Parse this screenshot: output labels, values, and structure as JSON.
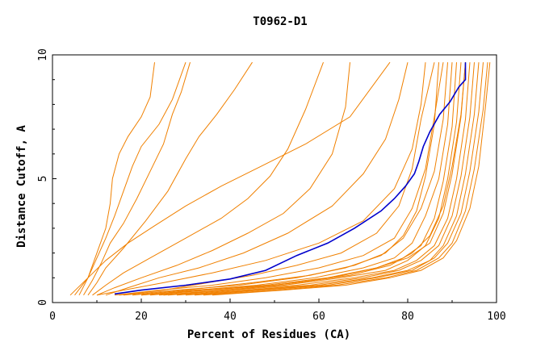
{
  "chart_data": {
    "type": "line",
    "title": "T0962-D1",
    "xlabel": "Percent of Residues (CA)",
    "ylabel": "Distance Cutoff, A",
    "xlim": [
      0,
      100
    ],
    "ylim": [
      0,
      10
    ],
    "x_ticks": [
      "0",
      "20",
      "40",
      "60",
      "80",
      "100"
    ],
    "y_ticks": [
      "0",
      "5",
      "10"
    ],
    "grid": false,
    "legend": "none",
    "colors": {
      "highlight": "#0000cc",
      "others": "#f08000"
    },
    "highlight_series": {
      "x": [
        14,
        20,
        30,
        40,
        48,
        55,
        62,
        68,
        74,
        77,
        79.5,
        81.5,
        82.5,
        83.5,
        85,
        87.2,
        89.5,
        91.5,
        93,
        93
      ],
      "y": [
        0.35,
        0.5,
        0.7,
        0.95,
        1.3,
        1.9,
        2.4,
        3.0,
        3.7,
        4.2,
        4.7,
        5.2,
        5.7,
        6.3,
        6.9,
        7.6,
        8.1,
        8.7,
        9.0,
        9.7
      ]
    },
    "series": [
      {
        "x": [
          5,
          8,
          10,
          12,
          13,
          13.5,
          15,
          17,
          20,
          22,
          23
        ],
        "y": [
          0.3,
          1,
          2,
          3,
          4,
          5,
          6,
          6.7,
          7.5,
          8.3,
          9.7
        ]
      },
      {
        "x": [
          6,
          8,
          10,
          12,
          14,
          16,
          18,
          20,
          24,
          27,
          30
        ],
        "y": [
          0.3,
          1,
          1.8,
          2.6,
          3.5,
          4.5,
          5.5,
          6.3,
          7.2,
          8.2,
          9.7
        ]
      },
      {
        "x": [
          7,
          9,
          11,
          13,
          16,
          19,
          22,
          25,
          27,
          29,
          31
        ],
        "y": [
          0.3,
          0.9,
          1.6,
          2.4,
          3.2,
          4.2,
          5.3,
          6.4,
          7.6,
          8.5,
          9.7
        ]
      },
      {
        "x": [
          8,
          10,
          12,
          16,
          21,
          26,
          30,
          33,
          37,
          41,
          45
        ],
        "y": [
          0.3,
          0.8,
          1.4,
          2.2,
          3.3,
          4.5,
          5.8,
          6.7,
          7.6,
          8.6,
          9.7
        ]
      },
      {
        "x": [
          9,
          12,
          16,
          22,
          30,
          38,
          44,
          49,
          53,
          57,
          61
        ],
        "y": [
          0.3,
          0.7,
          1.2,
          1.8,
          2.6,
          3.4,
          4.2,
          5.1,
          6.2,
          7.8,
          9.7
        ]
      },
      {
        "x": [
          10,
          14,
          20,
          28,
          36,
          44,
          52,
          58,
          63,
          66,
          67
        ],
        "y": [
          0.3,
          0.6,
          1.0,
          1.5,
          2.1,
          2.8,
          3.6,
          4.6,
          6.0,
          7.9,
          9.7
        ]
      },
      {
        "x": [
          4,
          8,
          12,
          17,
          23,
          30,
          38,
          47,
          57,
          67,
          76
        ],
        "y": [
          0.3,
          1.0,
          1.7,
          2.4,
          3.1,
          3.9,
          4.7,
          5.5,
          6.4,
          7.5,
          9.7
        ]
      },
      {
        "x": [
          12,
          17,
          24,
          33,
          43,
          53,
          63,
          70,
          75,
          78,
          80
        ],
        "y": [
          0.3,
          0.6,
          1.0,
          1.4,
          2.0,
          2.8,
          3.9,
          5.2,
          6.6,
          8.2,
          9.7
        ]
      },
      {
        "x": [
          10,
          16,
          25,
          36,
          48,
          60,
          70,
          77,
          81,
          83,
          84
        ],
        "y": [
          0.3,
          0.5,
          0.8,
          1.2,
          1.7,
          2.4,
          3.3,
          4.6,
          6.2,
          8.0,
          9.7
        ]
      },
      {
        "x": [
          15,
          25,
          35,
          45,
          55,
          65,
          73,
          78,
          81,
          83,
          86
        ],
        "y": [
          0.3,
          0.5,
          0.8,
          1.1,
          1.5,
          2.0,
          2.8,
          3.9,
          5.4,
          7.4,
          9.7
        ]
      },
      {
        "x": [
          14,
          24,
          36,
          48,
          60,
          70,
          77,
          81,
          84,
          86,
          88
        ],
        "y": [
          0.3,
          0.5,
          0.7,
          1.0,
          1.4,
          1.9,
          2.6,
          3.8,
          5.4,
          7.5,
          9.7
        ]
      },
      {
        "x": [
          18,
          30,
          45,
          58,
          68,
          75,
          79,
          82,
          84,
          86,
          87
        ],
        "y": [
          0.3,
          0.5,
          0.8,
          1.1,
          1.5,
          2.0,
          2.7,
          3.7,
          5.1,
          7.2,
          9.7
        ]
      },
      {
        "x": [
          16,
          28,
          42,
          55,
          66,
          74,
          79,
          83,
          86,
          88,
          89
        ],
        "y": [
          0.3,
          0.5,
          0.7,
          1.0,
          1.4,
          1.9,
          2.6,
          3.8,
          5.3,
          7.4,
          9.7
        ]
      },
      {
        "x": [
          20,
          32,
          46,
          59,
          70,
          77,
          81,
          84,
          87,
          89,
          90
        ],
        "y": [
          0.3,
          0.5,
          0.7,
          1.0,
          1.4,
          1.8,
          2.4,
          3.5,
          5.0,
          7.2,
          9.7
        ]
      },
      {
        "x": [
          22,
          35,
          50,
          63,
          73,
          79,
          83,
          86,
          88,
          90,
          91
        ],
        "y": [
          0.3,
          0.5,
          0.7,
          1.0,
          1.4,
          1.8,
          2.3,
          3.4,
          4.9,
          7.1,
          9.7
        ]
      },
      {
        "x": [
          24,
          38,
          52,
          65,
          75,
          80,
          84,
          87,
          89,
          91,
          92
        ],
        "y": [
          0.3,
          0.5,
          0.7,
          1.0,
          1.3,
          1.7,
          2.3,
          3.4,
          5.0,
          7.3,
          9.7
        ]
      },
      {
        "x": [
          20,
          34,
          48,
          62,
          73,
          80,
          85,
          88,
          90,
          92,
          93
        ],
        "y": [
          0.3,
          0.5,
          0.7,
          1.0,
          1.4,
          1.8,
          2.4,
          3.6,
          5.2,
          7.5,
          9.7
        ]
      },
      {
        "x": [
          26,
          40,
          55,
          68,
          77,
          82,
          86,
          89,
          91,
          93,
          94
        ],
        "y": [
          0.3,
          0.5,
          0.7,
          1.0,
          1.3,
          1.7,
          2.3,
          3.4,
          5.0,
          7.4,
          9.7
        ]
      },
      {
        "x": [
          28,
          43,
          58,
          70,
          78,
          83,
          87,
          90,
          92,
          94,
          95
        ],
        "y": [
          0.3,
          0.5,
          0.7,
          1.0,
          1.3,
          1.7,
          2.3,
          3.5,
          5.1,
          7.5,
          9.7
        ]
      },
      {
        "x": [
          30,
          45,
          60,
          72,
          80,
          85,
          88,
          91,
          93,
          95,
          96
        ],
        "y": [
          0.3,
          0.5,
          0.7,
          1.0,
          1.3,
          1.7,
          2.3,
          3.5,
          5.2,
          7.6,
          9.7
        ]
      },
      {
        "x": [
          32,
          47,
          62,
          73,
          81,
          86,
          89,
          92,
          94,
          96,
          97
        ],
        "y": [
          0.3,
          0.5,
          0.7,
          1.0,
          1.3,
          1.8,
          2.4,
          3.6,
          5.3,
          7.7,
          9.7
        ]
      },
      {
        "x": [
          34,
          50,
          64,
          75,
          82,
          87,
          90,
          93,
          95,
          97,
          98
        ],
        "y": [
          0.3,
          0.5,
          0.7,
          1.0,
          1.3,
          1.8,
          2.4,
          3.7,
          5.4,
          7.8,
          9.7
        ]
      },
      {
        "x": [
          36,
          52,
          66,
          76,
          83,
          88,
          91,
          94,
          96,
          97.5,
          98.5
        ],
        "y": [
          0.3,
          0.5,
          0.7,
          1.0,
          1.3,
          1.8,
          2.5,
          3.8,
          5.5,
          7.9,
          9.7
        ]
      },
      {
        "x": [
          25,
          40,
          55,
          67,
          76,
          81,
          85,
          88,
          90,
          92,
          93
        ],
        "y": [
          0.3,
          0.5,
          0.8,
          1.1,
          1.5,
          2.0,
          2.7,
          3.9,
          5.5,
          7.6,
          9.7
        ]
      }
    ]
  }
}
